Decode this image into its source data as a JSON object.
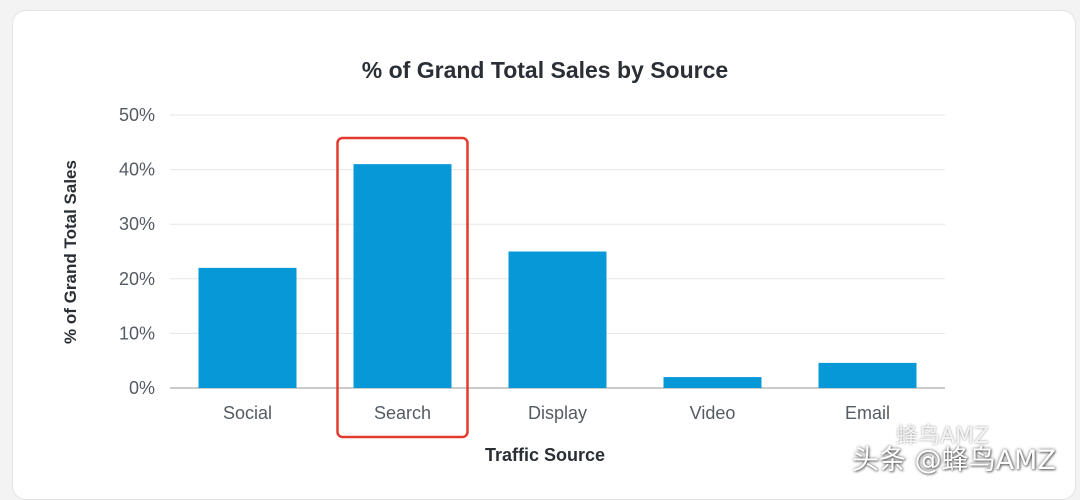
{
  "chart_data": {
    "type": "bar",
    "title": "% of Grand Total Sales by Source",
    "xlabel": "Traffic Source",
    "ylabel": "% of Grand Total Sales",
    "categories": [
      "Social",
      "Search",
      "Display",
      "Video",
      "Email"
    ],
    "values": [
      22,
      41,
      25,
      2,
      4.6
    ],
    "ylim": [
      0,
      50
    ],
    "yticks": [
      0,
      10,
      20,
      30,
      40,
      50
    ],
    "ytick_labels": [
      "0%",
      "10%",
      "20%",
      "30%",
      "40%",
      "50%"
    ],
    "grid": true,
    "highlight": {
      "category": "Search",
      "style": "red outline box"
    }
  },
  "colors": {
    "bar": "#0798d8",
    "highlight": "#e23b2e",
    "grid": "#e6e6e6",
    "axis": "#b8b8b8"
  },
  "watermarks": [
    "蜂鸟AMZ",
    "头条 @蜂鸟AMZ"
  ]
}
